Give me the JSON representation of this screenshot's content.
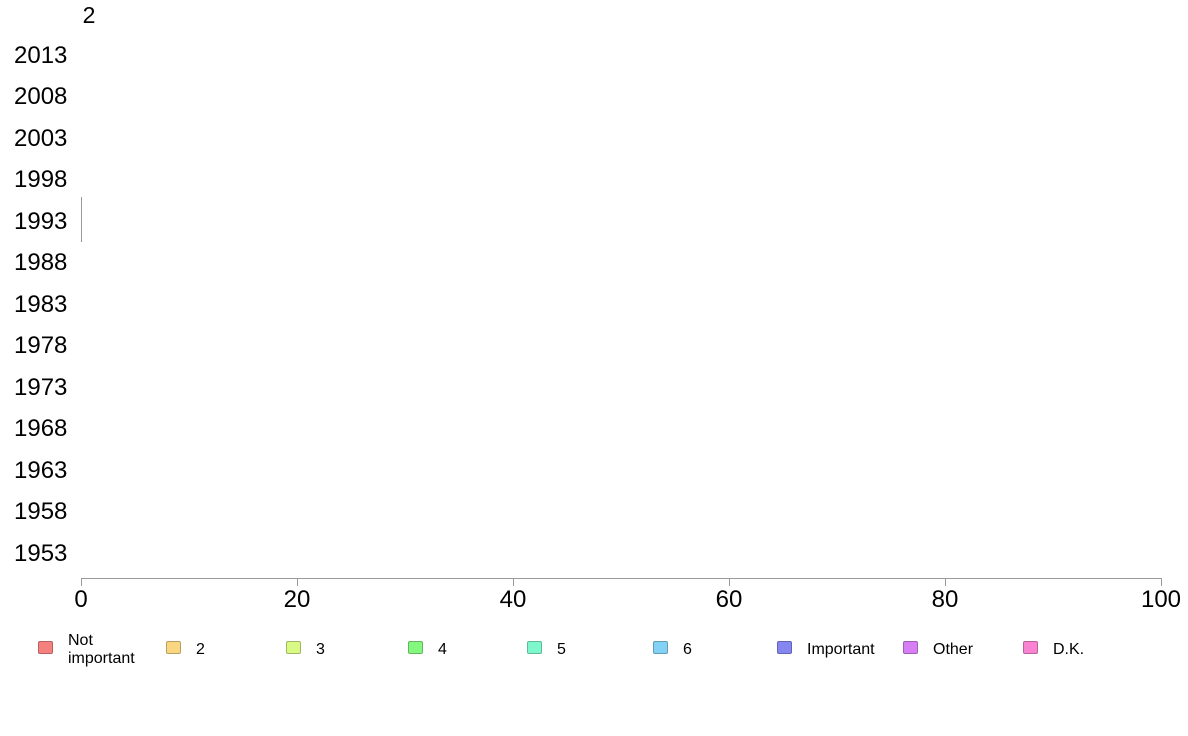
{
  "chart_data": {
    "type": "bar",
    "orientation": "horizontal",
    "title": "",
    "xlabel": "",
    "ylabel": "",
    "categories": [
      "2013",
      "2008",
      "2003",
      "1998",
      "1993",
      "1988",
      "1983",
      "1978",
      "1973",
      "1968",
      "1963",
      "1958",
      "1953"
    ],
    "x_axis": {
      "range": [
        0,
        100
      ],
      "ticks": [
        "0",
        "20",
        "40",
        "60",
        "80",
        "100"
      ]
    },
    "series": [
      {
        "name": "Not important",
        "color": "#f58080"
      },
      {
        "name": "2",
        "color": "#fbd680"
      },
      {
        "name": "3",
        "color": "#d8fa85"
      },
      {
        "name": "4",
        "color": "#84f77e"
      },
      {
        "name": "5",
        "color": "#7ef7cd"
      },
      {
        "name": "6",
        "color": "#83d2f6"
      },
      {
        "name": "Important",
        "color": "#8686f1"
      },
      {
        "name": "Other",
        "color": "#d77ef5"
      },
      {
        "name": "D.K.",
        "color": "#f983d2"
      }
    ],
    "grid": false,
    "legend_position": "bottom",
    "visible_marks": {
      "top_bar_value_label": "2",
      "zero_width_bar_at_category": "1993"
    }
  },
  "annotations": {
    "bar_label": "2"
  },
  "legend": {
    "items": [
      {
        "label": "Not important",
        "fill": "#f58080",
        "border": "#b66060"
      },
      {
        "label": "2",
        "fill": "#fbd680",
        "border": "#b89f60"
      },
      {
        "label": "3",
        "fill": "#d8fa85",
        "border": "#9fb863"
      },
      {
        "label": "4",
        "fill": "#84f77e",
        "border": "#63b65e"
      },
      {
        "label": "5",
        "fill": "#7ef7cd",
        "border": "#5fb899"
      },
      {
        "label": "6",
        "fill": "#83d2f6",
        "border": "#629db8"
      },
      {
        "label": "Important",
        "fill": "#8686f1",
        "border": "#6363b4"
      },
      {
        "label": "Other",
        "fill": "#d77ef5",
        "border": "#9f5eb6"
      },
      {
        "label": "D.K.",
        "fill": "#f983d2",
        "border": "#b8619c"
      }
    ]
  },
  "colors": {
    "axis": "#999999",
    "text": "#000000",
    "background": "#ffffff"
  }
}
